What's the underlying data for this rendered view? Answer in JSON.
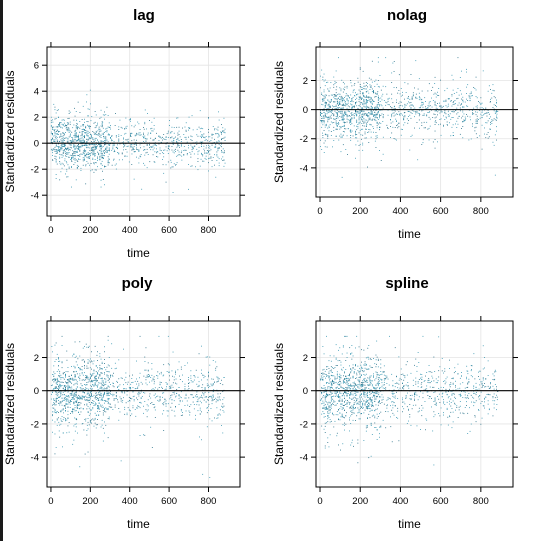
{
  "chart_data": [
    {
      "type": "scatter",
      "title": "lag",
      "xlabel": "time",
      "ylabel": "Standardized residuals",
      "xlim": [
        -20,
        960
      ],
      "ylim": [
        -5.6,
        7.4
      ],
      "xticks": [
        0,
        200,
        400,
        600,
        800
      ],
      "yticks": [
        -4,
        -2,
        0,
        2,
        4,
        6
      ],
      "reference_line": 0,
      "point_color": "#1f8aa8",
      "grid": true,
      "residual_summary": {
        "x_range": [
          0,
          880
        ],
        "dense_x_range": [
          0,
          300
        ],
        "y_spread": [
          -4.5,
          6.5
        ]
      }
    },
    {
      "type": "scatter",
      "title": "nolag",
      "xlabel": "time",
      "ylabel": "Standardized residuals",
      "xlim": [
        -20,
        960
      ],
      "ylim": [
        -6,
        4.3
      ],
      "xticks": [
        0,
        200,
        400,
        600,
        800
      ],
      "yticks": [
        -4,
        -2,
        0,
        2
      ],
      "reference_line": 0,
      "point_color": "#1f8aa8",
      "grid": true,
      "residual_summary": {
        "x_range": [
          0,
          880
        ],
        "dense_x_range": [
          0,
          300
        ],
        "y_spread": [
          -5.2,
          3.6
        ]
      }
    },
    {
      "type": "scatter",
      "title": "poly",
      "xlabel": "time",
      "ylabel": "Standardized residuals",
      "xlim": [
        -20,
        960
      ],
      "ylim": [
        -5.8,
        4.2
      ],
      "xticks": [
        0,
        200,
        400,
        600,
        800
      ],
      "yticks": [
        -4,
        -2,
        0,
        2
      ],
      "reference_line": 0,
      "point_color": "#1f8aa8",
      "grid": true,
      "residual_summary": {
        "x_range": [
          0,
          880
        ],
        "dense_x_range": [
          0,
          300
        ],
        "y_spread": [
          -5.2,
          3.3
        ]
      }
    },
    {
      "type": "scatter",
      "title": "spline",
      "xlabel": "time",
      "ylabel": "Standardized residuals",
      "xlim": [
        -20,
        960
      ],
      "ylim": [
        -5.8,
        4.2
      ],
      "xticks": [
        0,
        200,
        400,
        600,
        800
      ],
      "yticks": [
        -4,
        -2,
        0,
        2
      ],
      "reference_line": 0,
      "point_color": "#1f8aa8",
      "grid": true,
      "residual_summary": {
        "x_range": [
          0,
          880
        ],
        "dense_x_range": [
          0,
          300
        ],
        "y_spread": [
          -5.2,
          3.3
        ]
      }
    }
  ]
}
